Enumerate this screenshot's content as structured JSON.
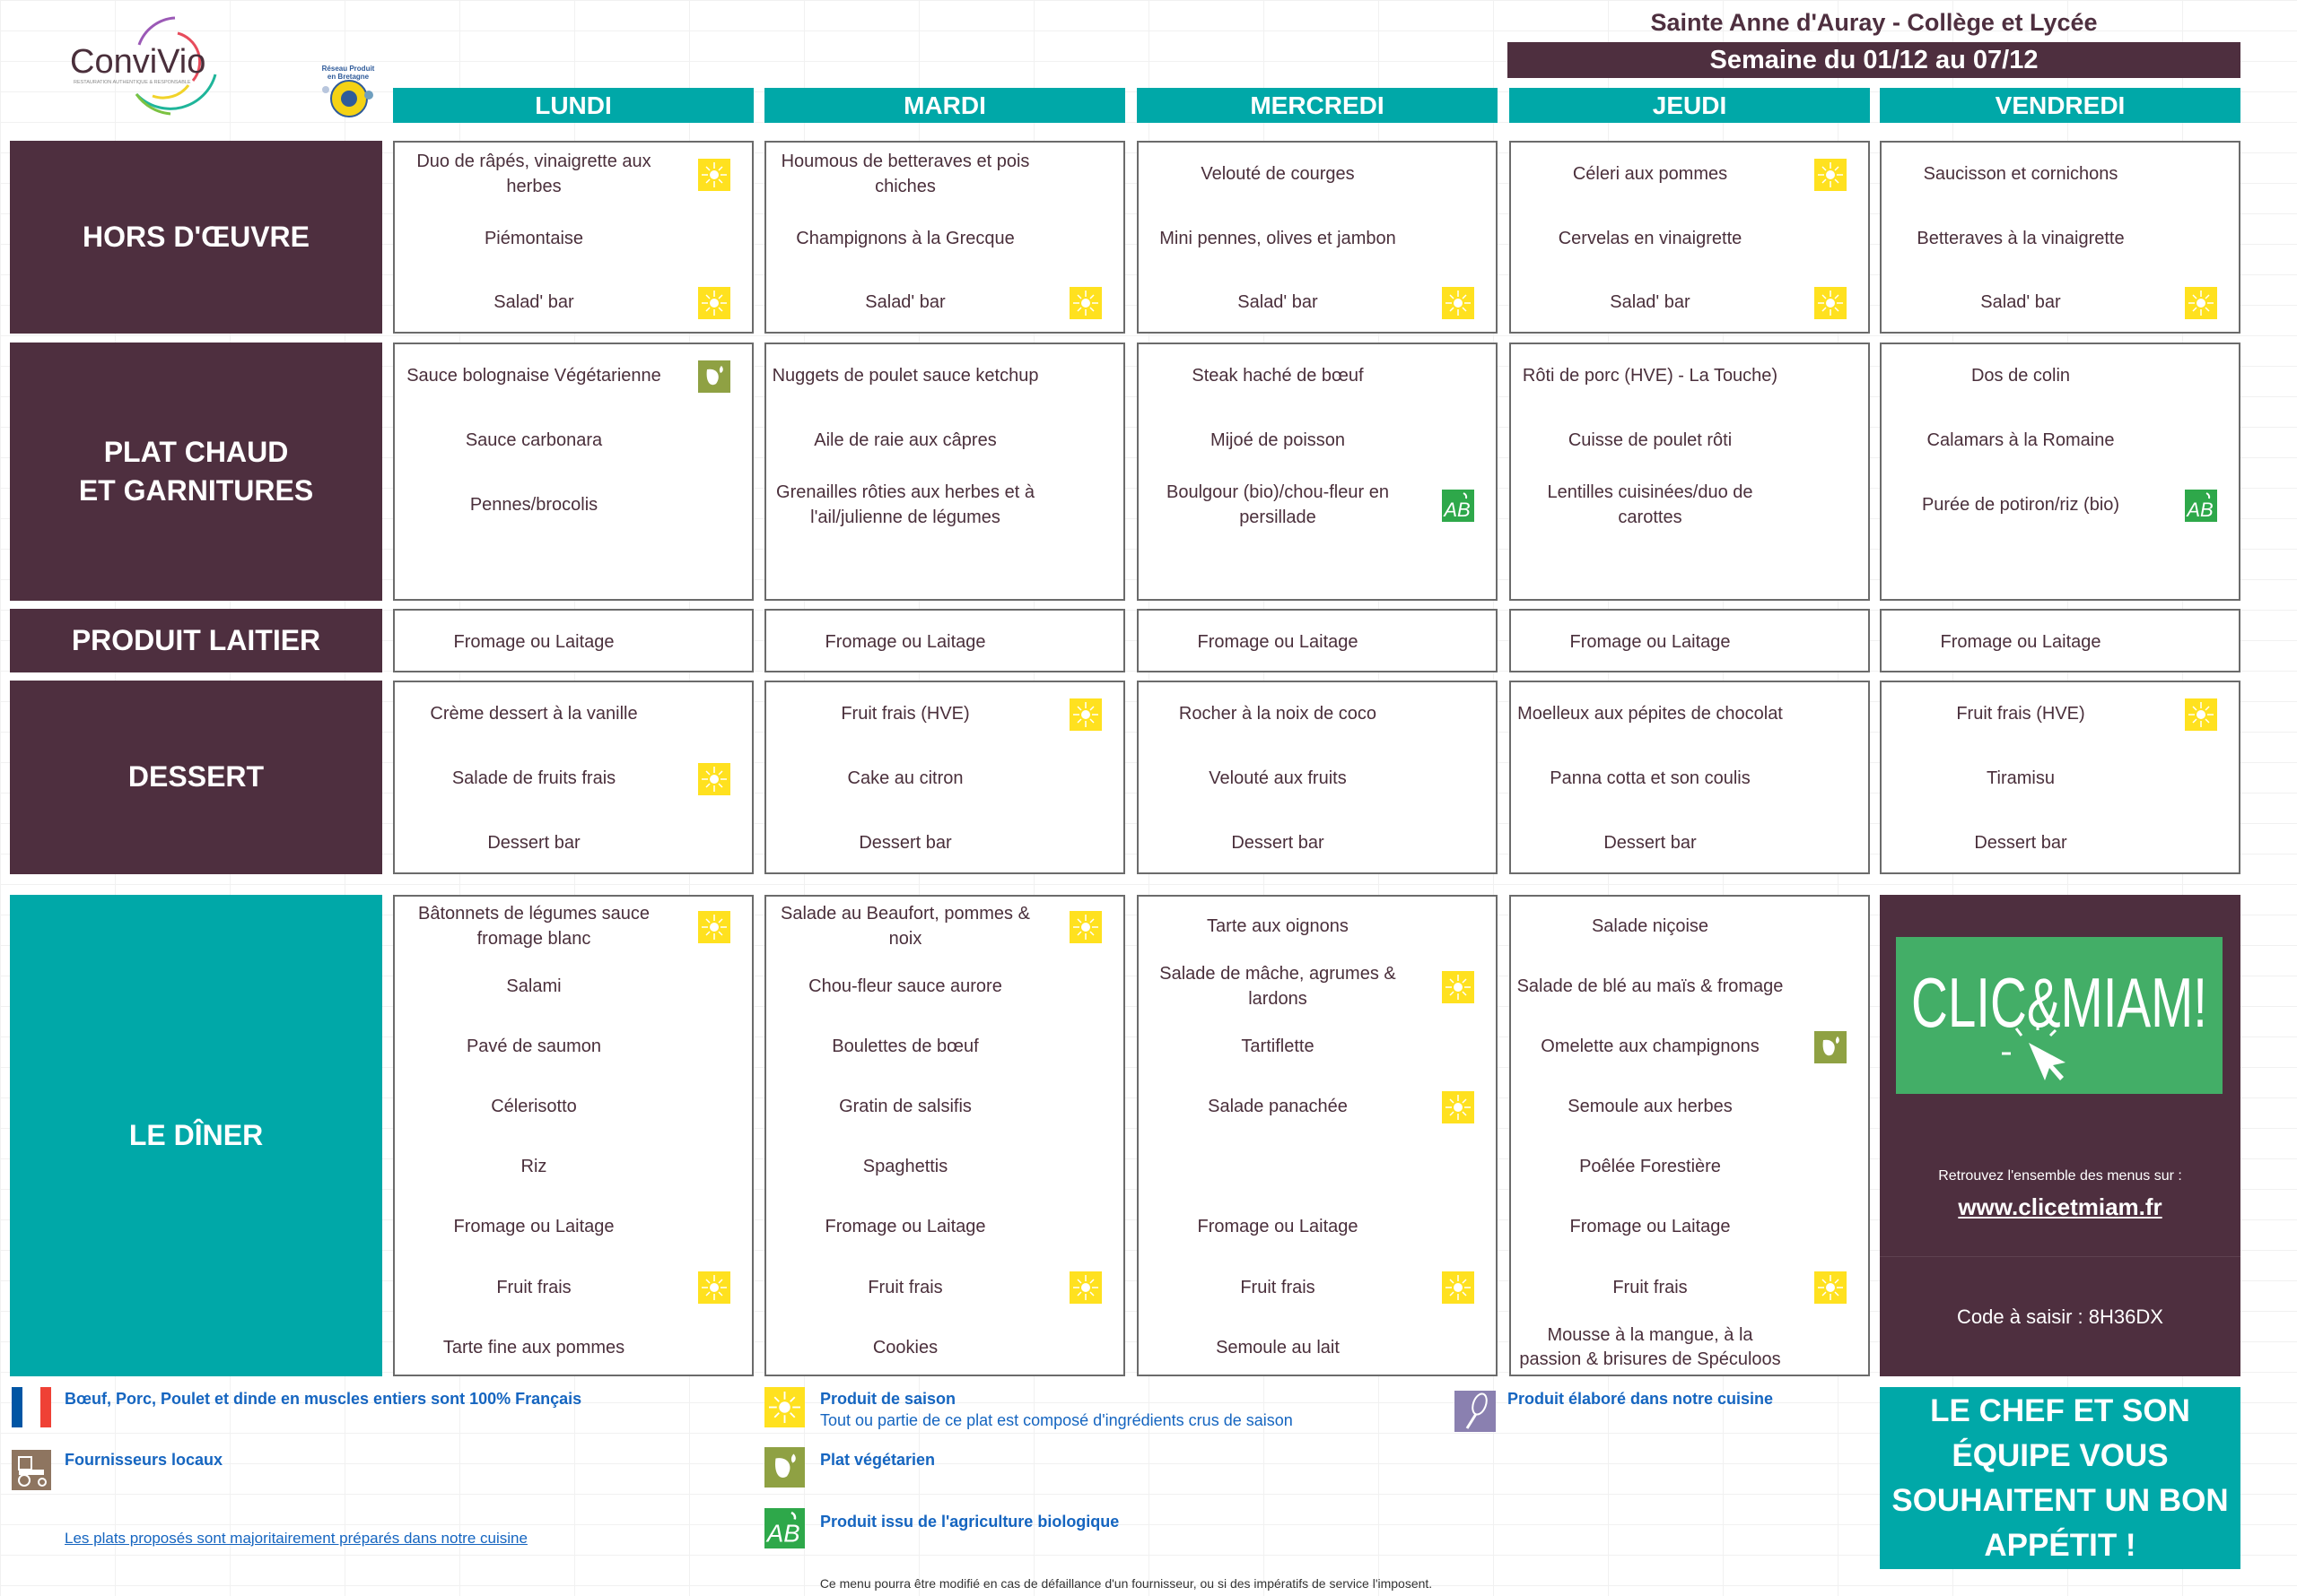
{
  "header": {
    "logo_text": "ConviVio",
    "logo_tagline": "RESTAURATION AUTHENTIQUE & RESPONSABLE",
    "partner_logo_text": "Réseau Produit en Bretagne",
    "site_title": "Sainte Anne d'Auray - Collège et Lycée",
    "week": "Semaine du 01/12 au 07/12"
  },
  "colors": {
    "plum": "#4e2f3f",
    "teal": "#00a8a8",
    "season_yellow": "#ffe11f",
    "veg_olive": "#8fa143",
    "bio_green": "#2ea84a",
    "clic_green": "#43ae67"
  },
  "days": [
    "LUNDI",
    "MARDI",
    "MERCREDI",
    "JEUDI",
    "VENDREDI"
  ],
  "sections": [
    {
      "label": "HORS D'ŒUVRE",
      "days": [
        [
          {
            "t": "Duo de râpés, vinaigrette aux herbes",
            "icon": "sun"
          },
          {
            "t": "Piémontaise"
          },
          {
            "t": "Salad' bar",
            "icon": "sun"
          }
        ],
        [
          {
            "t": "Houmous de betteraves et pois chiches"
          },
          {
            "t": "Champignons à la Grecque"
          },
          {
            "t": "Salad' bar",
            "icon": "sun"
          }
        ],
        [
          {
            "t": "Velouté de courges"
          },
          {
            "t": "Mini pennes, olives et jambon"
          },
          {
            "t": "Salad' bar",
            "icon": "sun"
          }
        ],
        [
          {
            "t": "Céleri aux pommes",
            "icon": "sun"
          },
          {
            "t": "Cervelas en vinaigrette"
          },
          {
            "t": "Salad' bar",
            "icon": "sun"
          }
        ],
        [
          {
            "t": "Saucisson et cornichons"
          },
          {
            "t": "Betteraves à la vinaigrette"
          },
          {
            "t": "Salad' bar",
            "icon": "sun"
          }
        ]
      ]
    },
    {
      "label": "PLAT CHAUD\nET GARNITURES",
      "days": [
        [
          {
            "t": "Sauce bolognaise Végétarienne",
            "icon": "leaf"
          },
          {
            "t": "Sauce carbonara"
          },
          {
            "t": "Pennes/brocolis"
          },
          {
            "t": ""
          }
        ],
        [
          {
            "t": "Nuggets de poulet sauce ketchup"
          },
          {
            "t": "Aile de raie aux câpres"
          },
          {
            "t": "Grenailles rôties aux herbes et à l'ail/julienne de légumes"
          },
          {
            "t": ""
          }
        ],
        [
          {
            "t": "Steak haché de bœuf"
          },
          {
            "t": "Mijoé de poisson"
          },
          {
            "t": "Boulgour (bio)/chou-fleur en persillade",
            "icon": "ab"
          },
          {
            "t": ""
          }
        ],
        [
          {
            "t": "Rôti de porc (HVE) - La Touche)"
          },
          {
            "t": "Cuisse de poulet rôti"
          },
          {
            "t": "Lentilles cuisinées/duo de carottes"
          },
          {
            "t": ""
          }
        ],
        [
          {
            "t": "Dos de colin"
          },
          {
            "t": "Calamars à la Romaine"
          },
          {
            "t": "Purée de potiron/riz (bio)",
            "icon": "ab"
          },
          {
            "t": ""
          }
        ]
      ]
    },
    {
      "label": "PRODUIT LAITIER",
      "days": [
        [
          {
            "t": "Fromage ou Laitage"
          }
        ],
        [
          {
            "t": "Fromage ou Laitage"
          }
        ],
        [
          {
            "t": "Fromage ou Laitage"
          }
        ],
        [
          {
            "t": "Fromage ou Laitage"
          }
        ],
        [
          {
            "t": "Fromage ou Laitage"
          }
        ]
      ]
    },
    {
      "label": "DESSERT",
      "days": [
        [
          {
            "t": "Crème dessert à la vanille"
          },
          {
            "t": "Salade de fruits frais",
            "icon": "sun"
          },
          {
            "t": "Dessert bar"
          }
        ],
        [
          {
            "t": "Fruit frais (HVE)",
            "icon": "sun"
          },
          {
            "t": "Cake au citron"
          },
          {
            "t": "Dessert bar"
          }
        ],
        [
          {
            "t": "Rocher à la noix de coco"
          },
          {
            "t": "Velouté aux fruits"
          },
          {
            "t": "Dessert bar"
          }
        ],
        [
          {
            "t": "Moelleux aux pépites de chocolat"
          },
          {
            "t": "Panna cotta et son coulis"
          },
          {
            "t": "Dessert bar"
          }
        ],
        [
          {
            "t": "Fruit frais (HVE)",
            "icon": "sun"
          },
          {
            "t": "Tiramisu"
          },
          {
            "t": "Dessert bar"
          }
        ]
      ]
    },
    {
      "label": "LE DÎNER",
      "days": [
        [
          {
            "t": "Bâtonnets de légumes sauce fromage blanc",
            "icon": "sun"
          },
          {
            "t": "Salami"
          },
          {
            "t": "Pavé de saumon"
          },
          {
            "t": "Célerisotto"
          },
          {
            "t": "Riz"
          },
          {
            "t": "Fromage ou Laitage"
          },
          {
            "t": "Fruit frais",
            "icon": "sun"
          },
          {
            "t": "Tarte fine aux pommes"
          }
        ],
        [
          {
            "t": "Salade au Beaufort, pommes & noix",
            "icon": "sun"
          },
          {
            "t": "Chou-fleur sauce aurore"
          },
          {
            "t": "Boulettes de bœuf"
          },
          {
            "t": "Gratin de salsifis"
          },
          {
            "t": "Spaghettis"
          },
          {
            "t": "Fromage ou Laitage"
          },
          {
            "t": "Fruit frais",
            "icon": "sun"
          },
          {
            "t": "Cookies"
          }
        ],
        [
          {
            "t": "Tarte aux oignons"
          },
          {
            "t": "Salade de mâche, agrumes & lardons",
            "icon": "sun"
          },
          {
            "t": "Tartiflette"
          },
          {
            "t": "Salade panachée",
            "icon": "sun"
          },
          {
            "t": ""
          },
          {
            "t": "Fromage ou Laitage"
          },
          {
            "t": "Fruit frais",
            "icon": "sun"
          },
          {
            "t": "Semoule au lait"
          }
        ],
        [
          {
            "t": "Salade niçoise"
          },
          {
            "t": "Salade de blé au maïs & fromage"
          },
          {
            "t": "Omelette aux champignons",
            "icon": "leaf"
          },
          {
            "t": "Semoule aux herbes"
          },
          {
            "t": "Poêlée Forestière"
          },
          {
            "t": "Fromage ou Laitage"
          },
          {
            "t": "Fruit frais",
            "icon": "sun"
          },
          {
            "t": "Mousse à la mangue, à la passion & brisures de Spéculoos"
          }
        ]
      ]
    }
  ],
  "promo": {
    "logo_text": "CLIC&MIAM!",
    "retrouvez": "Retrouvez l'ensemble des menus sur :",
    "url": "www.clicetmiam.fr",
    "code": "Code à saisir : 8H36DX"
  },
  "legend": {
    "french": "Bœuf, Porc, Poulet et dinde en muscles entiers sont 100% Français",
    "local": "Fournisseurs locaux",
    "kitchen_link": "Les plats proposés sont majoritairement préparés dans notre cuisine",
    "season_title": "Produit de saison",
    "season_desc": "Tout ou partie de ce plat est composé d'ingrédients crus de saison",
    "vegetarian": "Plat végétarien",
    "bio": "Produit issu de l'agriculture biologique",
    "homemade": "Produit élaboré dans notre cuisine"
  },
  "chef_message": "LE CHEF ET SON\nÉQUIPE VOUS\nSOUHAITENT UN BON\nAPPÉTIT !",
  "footer": "Ce menu pourra être modifié en cas de défaillance d'un fournisseur, ou si des impératifs de service l'imposent."
}
